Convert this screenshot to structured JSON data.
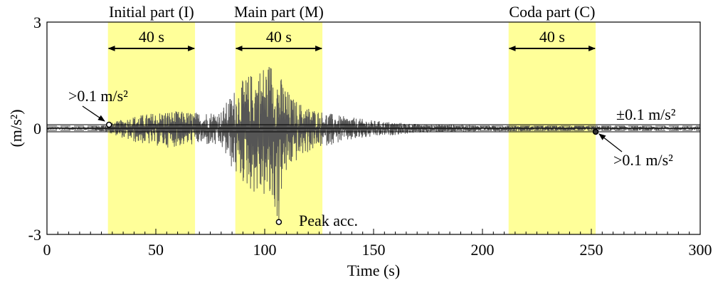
{
  "chart_data": {
    "type": "line",
    "title": "",
    "xlabel": "Time (s)",
    "ylabel": "(m/s²)",
    "xlim": [
      0,
      300
    ],
    "ylim": [
      -3,
      3
    ],
    "x_ticks": [
      0,
      50,
      100,
      150,
      200,
      250,
      300
    ],
    "x_tick_labels": [
      "0",
      "50",
      "100",
      "150",
      "200",
      "250",
      "300"
    ],
    "y_ticks": [
      3,
      0,
      -3
    ],
    "y_tick_labels": [
      "3",
      "0",
      "-3"
    ],
    "grid": false,
    "colors": {
      "signal": "#555555",
      "highlight": "#ffff99",
      "threshold_solid": "#000000",
      "threshold_dashed": "#444444"
    },
    "threshold": 0.1,
    "threshold_label": "±0.1 m/s²",
    "windows": [
      {
        "name": "Initial part (I)",
        "start": 28,
        "end": 68,
        "duration_label": "40 s"
      },
      {
        "name": "Main part (M)",
        "start": 86.5,
        "end": 126.5,
        "duration_label": "40 s"
      },
      {
        "name": "Coda part (C)",
        "start": 212,
        "end": 252,
        "duration_label": "40 s"
      }
    ],
    "markers": [
      {
        "label": ">0.1 m/s²",
        "x": 28.5,
        "y": 0.1
      },
      {
        "label": ">0.1 m/s²",
        "x": 252,
        "y": -0.1
      },
      {
        "label": "Peak acc.",
        "x": 106.5,
        "y": -2.65
      }
    ],
    "envelope": {
      "description_free": true,
      "x": [
        0,
        20,
        28,
        40,
        55,
        70,
        80,
        86,
        92,
        96,
        100,
        104,
        106,
        108,
        112,
        118,
        125,
        135,
        150,
        170,
        200,
        250,
        300
      ],
      "upper": [
        0.04,
        0.05,
        0.12,
        0.35,
        0.5,
        0.45,
        0.5,
        1.1,
        1.5,
        1.65,
        1.85,
        1.95,
        1.6,
        1.4,
        0.9,
        0.65,
        0.5,
        0.35,
        0.22,
        0.12,
        0.08,
        0.06,
        0.05
      ],
      "lower": [
        -0.04,
        -0.05,
        -0.12,
        -0.4,
        -0.55,
        -0.45,
        -0.55,
        -1.3,
        -1.7,
        -1.9,
        -2.0,
        -2.35,
        -2.65,
        -1.7,
        -1.1,
        -0.75,
        -0.55,
        -0.4,
        -0.25,
        -0.13,
        -0.09,
        -0.07,
        -0.05
      ]
    }
  }
}
